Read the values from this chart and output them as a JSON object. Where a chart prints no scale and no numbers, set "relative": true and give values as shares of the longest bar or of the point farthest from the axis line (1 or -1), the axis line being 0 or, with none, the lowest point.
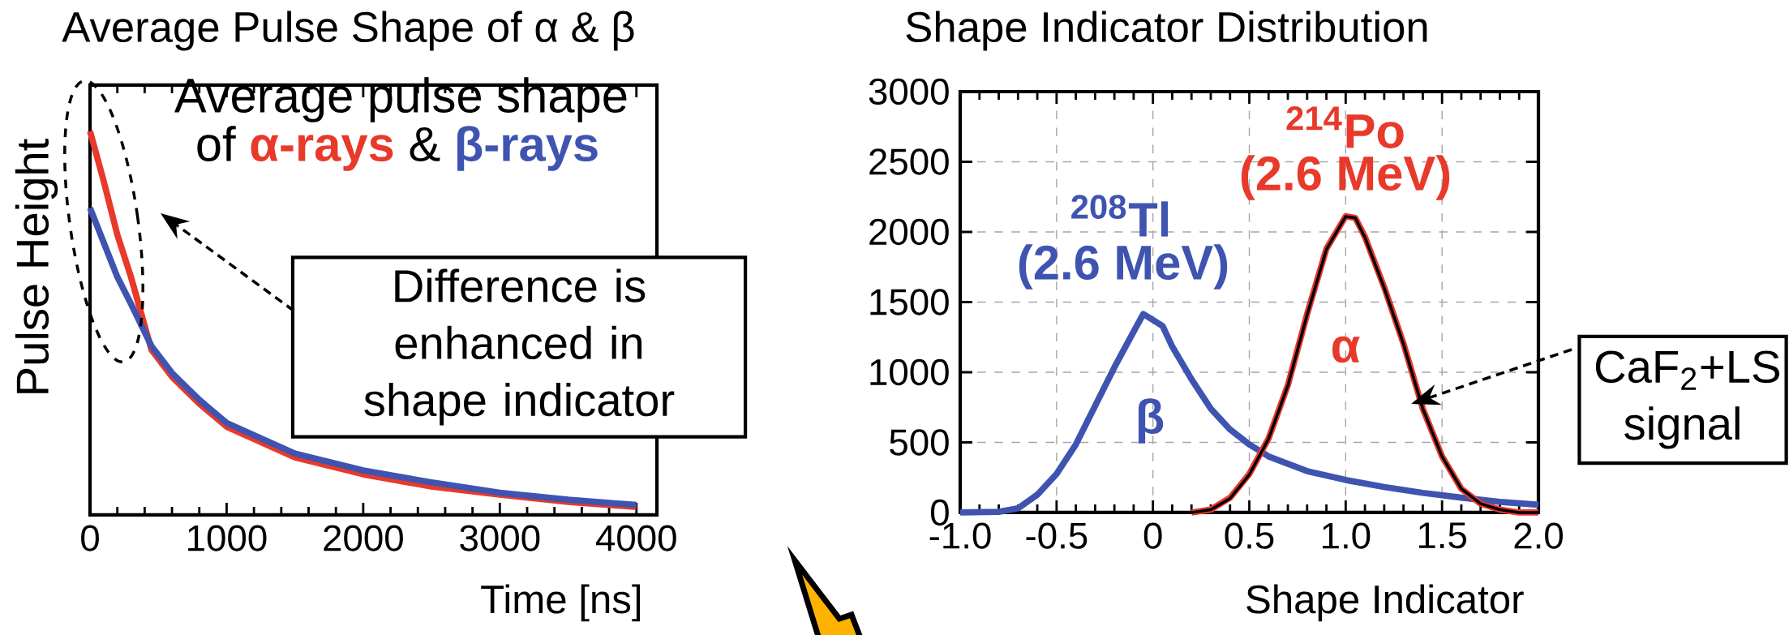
{
  "chart_data": [
    {
      "type": "line",
      "title": "Average Pulse Shape of α & β",
      "xlabel": "Time [ns]",
      "ylabel": "Pulse Height",
      "relative": true,
      "x": [
        0,
        100,
        200,
        300,
        450,
        600,
        800,
        1000,
        1500,
        2000,
        2500,
        3000,
        3500,
        4000
      ],
      "series": [
        {
          "color": "#e8392a",
          "values": [
            1.0,
            0.87,
            0.73,
            0.62,
            0.43,
            0.36,
            0.29,
            0.23,
            0.15,
            0.106,
            0.074,
            0.053,
            0.034,
            0.021
          ]
        },
        {
          "color": "#3f54b0",
          "values": [
            0.8,
            0.71,
            0.62,
            0.55,
            0.44,
            0.37,
            0.3,
            0.24,
            0.16,
            0.116,
            0.085,
            0.058,
            0.04,
            0.026
          ]
        }
      ],
      "xlim": [
        0,
        4150
      ],
      "xticks": [
        0,
        1000,
        2000,
        3000,
        4000
      ],
      "annotations": [
        "Average pulse shape",
        "of",
        "α-rays",
        "&",
        "β-rays",
        "Difference is enhanced in shape indicator"
      ]
    },
    {
      "type": "line",
      "title": "Shape Indicator Distribution",
      "xlabel": "Shape Indicator",
      "grid": true,
      "series": [
        {
          "color": "#3f54b0",
          "x": [
            -1.0,
            -0.8,
            -0.7,
            -0.6,
            -0.5,
            -0.4,
            -0.3,
            -0.2,
            -0.1,
            -0.05,
            0,
            0.05,
            0.1,
            0.2,
            0.3,
            0.4,
            0.5,
            0.6,
            0.8,
            1.0,
            1.2,
            1.4,
            1.6,
            1.8,
            2.0
          ],
          "values": [
            0,
            5,
            30,
            127,
            275,
            485,
            760,
            1035,
            1290,
            1415,
            1373,
            1330,
            1183,
            950,
            740,
            592,
            485,
            400,
            295,
            232,
            182,
            140,
            106,
            76,
            55
          ]
        },
        {
          "color": "#e8392a",
          "x": [
            0.2,
            0.3,
            0.4,
            0.5,
            0.6,
            0.7,
            0.8,
            0.9,
            1.0,
            1.05,
            1.1,
            1.2,
            1.3,
            1.4,
            1.5,
            1.6,
            1.7,
            1.8,
            1.9,
            2.0
          ],
          "values": [
            0,
            21,
            105,
            275,
            528,
            908,
            1415,
            1880,
            2112,
            2100,
            1965,
            1605,
            1204,
            740,
            400,
            169,
            63,
            21,
            0,
            0
          ]
        },
        {
          "color": "#000000",
          "x": [
            0.2,
            0.3,
            0.4,
            0.5,
            0.6,
            0.7,
            0.8,
            0.9,
            1.0,
            1.05,
            1.1,
            1.2,
            1.3,
            1.4,
            1.5,
            1.6,
            1.7,
            1.8,
            1.9,
            2.0
          ],
          "values": [
            0,
            20,
            100,
            270,
            525,
            905,
            1410,
            1875,
            2110,
            2100,
            1960,
            1600,
            1200,
            740,
            400,
            170,
            63,
            20,
            0,
            0
          ]
        }
      ],
      "xlim": [
        -1.0,
        2.0
      ],
      "ylim": [
        0,
        3000
      ],
      "xticks": [
        {
          "value": -1.0,
          "label": "-1.0"
        },
        {
          "value": -0.5,
          "label": "-0.5"
        },
        0,
        0.5,
        {
          "value": 1.0,
          "label": "1.0"
        },
        1.5,
        {
          "value": 2.0,
          "label": "2.0"
        }
      ],
      "yticks": [
        0,
        500,
        1000,
        1500,
        2000,
        2500,
        3000
      ],
      "annotations": [
        "$^{208}$Tl",
        "(2.6 MeV)",
        "$^{214}$Po",
        "(2.6 MeV)",
        "α",
        "β",
        "CaF$_{2}$+LS signal"
      ]
    }
  ]
}
